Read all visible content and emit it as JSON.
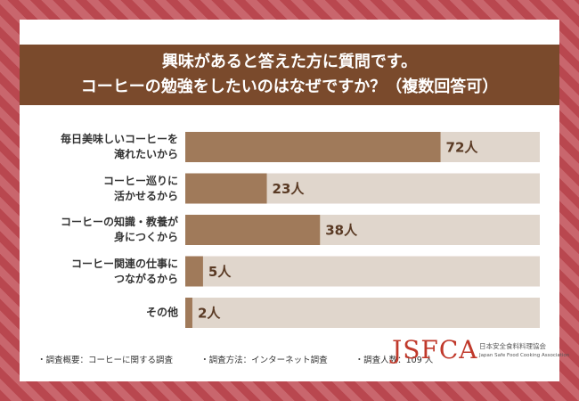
{
  "chart_data": {
    "type": "barh",
    "title": "興味があると答えた方に質問です。\nコーヒーの勉強をしたいのはなぜですか？（複数回答可）",
    "categories": [
      "毎日美味しいコーヒーを\n淹れたいから",
      "コーヒー巡りに\n活かせるから",
      "コーヒーの知識・教養が\n身につくから",
      "コーヒー関連の仕事に\nつながるから",
      "その他"
    ],
    "values": [
      72,
      23,
      38,
      5,
      2
    ],
    "value_labels": [
      "72人",
      "23人",
      "38人",
      "5人",
      "2人"
    ],
    "color": "#a07a5a",
    "track_color": "#e0d6cc",
    "xlim": [
      0,
      100
    ]
  },
  "notes": [
    "調査概要：コーヒーに関する調査",
    "調査方法：インターネット調査",
    "調査人数：109 人"
  ],
  "logo": {
    "text": "JSFCA",
    "name_ja": "日本安全食料料理協会",
    "name_en": "Japan Safe Food Cooking Association"
  }
}
